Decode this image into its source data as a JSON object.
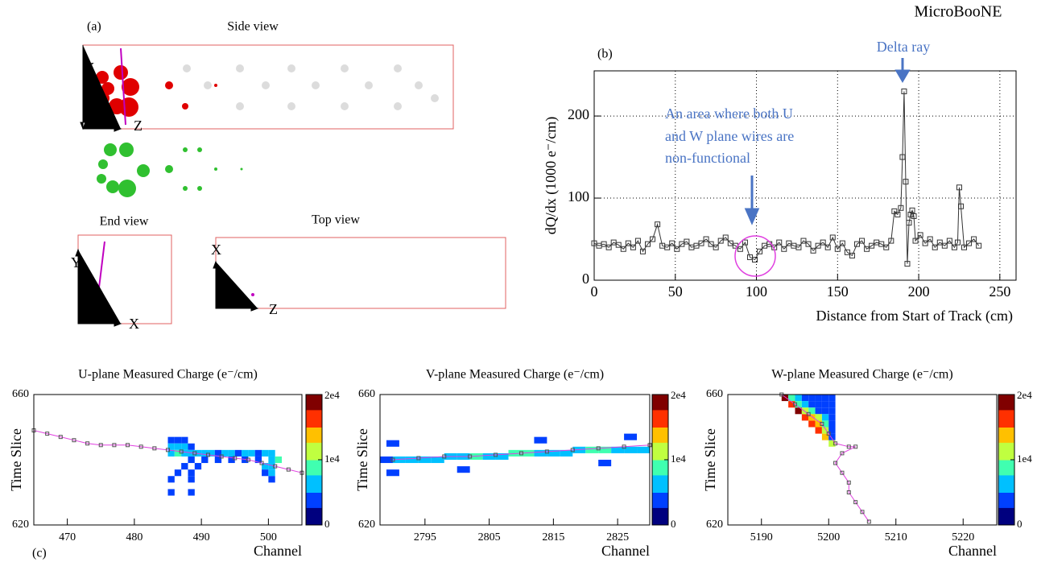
{
  "experiment": "MicroBooNE",
  "panel_labels": {
    "a": "(a)",
    "b": "(b)",
    "c": "(c)"
  },
  "panel_a": {
    "side_view": "Side view",
    "end_view": "End view",
    "top_view": "Top view",
    "side_axes": [
      "Y",
      "Z"
    ],
    "end_axes": [
      "Y",
      "X"
    ],
    "top_axes": [
      "X",
      "Z"
    ]
  },
  "chart_data": [
    {
      "type": "line",
      "x_label": "Distance from Start of Track (cm)",
      "y_label": "dQ/dx (1000 e⁻/cm)",
      "annotations": [
        "Delta ray",
        "An area where both U",
        "and W plane wires are",
        "non-functional"
      ],
      "color": "#333333",
      "x": [
        0,
        3,
        6,
        9,
        12,
        15,
        18,
        21,
        24,
        27,
        30,
        33,
        36,
        39,
        42,
        45,
        48,
        51,
        54,
        57,
        60,
        63,
        66,
        69,
        72,
        75,
        78,
        81,
        84,
        87,
        90,
        93,
        96,
        99,
        102,
        105,
        108,
        111,
        114,
        117,
        120,
        123,
        126,
        129,
        132,
        135,
        138,
        141,
        144,
        147,
        150,
        153,
        156,
        159,
        162,
        165,
        168,
        171,
        174,
        177,
        180,
        183,
        185,
        187,
        189,
        190,
        191,
        192,
        193,
        194,
        195,
        196,
        197,
        198,
        201,
        204,
        207,
        210,
        213,
        216,
        219,
        222,
        224,
        225,
        226,
        228,
        231,
        234,
        237
      ],
      "values": [
        45,
        42,
        44,
        40,
        46,
        43,
        38,
        45,
        40,
        48,
        35,
        44,
        50,
        68,
        42,
        40,
        45,
        38,
        44,
        47,
        40,
        42,
        45,
        50,
        44,
        40,
        48,
        52,
        45,
        42,
        38,
        46,
        28,
        25,
        35,
        42,
        44,
        40,
        46,
        38,
        45,
        42,
        40,
        48,
        44,
        36,
        42,
        46,
        40,
        52,
        38,
        45,
        34,
        30,
        44,
        48,
        38,
        42,
        46,
        44,
        40,
        48,
        84,
        80,
        88,
        150,
        230,
        120,
        20,
        70,
        80,
        85,
        78,
        48,
        55,
        45,
        50,
        40,
        46,
        42,
        48,
        40,
        46,
        113,
        90,
        40,
        45,
        50,
        42
      ],
      "xlim": [
        0,
        260
      ],
      "xticks": [
        0,
        50,
        100,
        150,
        200,
        250
      ],
      "ylim": [
        0,
        255
      ],
      "yticks": [
        0,
        100,
        200
      ],
      "grid": true
    },
    {
      "type": "heatmap",
      "title": "U-plane Measured Charge (e⁻/cm)",
      "x_label": "Channel",
      "y_label": "Time Slice",
      "xlim": [
        465,
        505
      ],
      "xticks": [
        470,
        480,
        490,
        500
      ],
      "ylim": [
        620,
        660
      ],
      "yticks": [
        620,
        660
      ],
      "clim": [
        0,
        20000
      ],
      "cticks": [
        0,
        {
          "value": 10000,
          "label": "1e4"
        },
        {
          "value": 20000,
          "label": "2e4"
        }
      ],
      "colormap": [
        "#00007f",
        "#0040ff",
        "#00c0ff",
        "#40ffb0",
        "#c0ff40",
        "#ffc000",
        "#ff3000",
        "#800000"
      ],
      "x": [
        485,
        486,
        487,
        485,
        486,
        487,
        488,
        485,
        486,
        487,
        488,
        489,
        490,
        491,
        492,
        493,
        494,
        495,
        496,
        497,
        498,
        499,
        500,
        488,
        490,
        492,
        494,
        496,
        498,
        500,
        501,
        487,
        489,
        499,
        500,
        486,
        488,
        499,
        500,
        485,
        488,
        500,
        485,
        488
      ],
      "y": [
        646,
        646,
        646,
        644,
        644,
        644,
        644,
        642,
        642,
        642,
        642,
        642,
        642,
        642,
        642,
        642,
        642,
        642,
        642,
        642,
        642,
        642,
        642,
        640,
        640,
        640,
        640,
        640,
        640,
        640,
        640,
        638,
        638,
        638,
        638,
        636,
        636,
        636,
        636,
        634,
        634,
        634,
        630,
        630
      ],
      "values": [
        3000,
        3500,
        2500,
        5000,
        6000,
        4500,
        3000,
        7000,
        8000,
        6000,
        5500,
        5000,
        4500,
        5000,
        4000,
        4500,
        5000,
        4000,
        4500,
        5000,
        4000,
        4500,
        5000,
        4000,
        3500,
        3000,
        3500,
        3000,
        4000,
        6000,
        9000,
        2500,
        3000,
        5000,
        6000,
        2000,
        2500,
        4000,
        5000,
        2500,
        2000,
        4000,
        2000,
        2000
      ],
      "track": {
        "color": "#e040e0",
        "x": [
          465,
          467,
          469,
          471,
          473,
          475,
          477,
          479,
          481,
          483,
          485,
          487,
          489,
          491,
          493,
          495,
          497,
          499,
          501,
          503,
          505
        ],
        "y": [
          649,
          648,
          647,
          646,
          645,
          644.5,
          644.5,
          644.5,
          644,
          643.5,
          643,
          642.5,
          642,
          641.5,
          641,
          640.5,
          640,
          639,
          638,
          637,
          636
        ]
      }
    },
    {
      "type": "heatmap",
      "title": "V-plane Measured Charge (e⁻/cm)",
      "x_label": "Channel",
      "y_label": "Time Slice",
      "xlim": [
        2788,
        2830
      ],
      "xticks": [
        2795,
        2805,
        2815,
        2825
      ],
      "ylim": [
        620,
        660
      ],
      "yticks": [
        620,
        660
      ],
      "clim": [
        0,
        20000
      ],
      "cticks": [
        0,
        {
          "value": 10000,
          "label": "1e4"
        },
        {
          "value": 20000,
          "label": "2e4"
        }
      ],
      "colormap": [
        "#00007f",
        "#0040ff",
        "#00c0ff",
        "#40ffb0",
        "#c0ff40",
        "#ffc000",
        "#ff3000",
        "#800000"
      ],
      "x": [
        2788,
        2790,
        2792,
        2794,
        2796,
        2798,
        2800,
        2802,
        2804,
        2806,
        2808,
        2810,
        2812,
        2814,
        2816,
        2818,
        2820,
        2822,
        2824,
        2826,
        2828,
        2789,
        2789,
        2800,
        2812,
        2822,
        2826
      ],
      "y": [
        640,
        640,
        640,
        640,
        640,
        641,
        641,
        641,
        641,
        641,
        642,
        642,
        642,
        642,
        642,
        643,
        643,
        643,
        643,
        643,
        643,
        645,
        636,
        637,
        646,
        639,
        647
      ],
      "values": [
        4000,
        5000,
        6000,
        5500,
        7000,
        6500,
        6000,
        8000,
        7000,
        6500,
        7500,
        8000,
        7000,
        6500,
        6000,
        7000,
        8000,
        7500,
        6000,
        7000,
        5000,
        2000,
        2500,
        2500,
        3000,
        2500,
        2000
      ],
      "track": {
        "color": "#e040e0",
        "x": [
          2790,
          2794,
          2798,
          2802,
          2806,
          2810,
          2814,
          2818,
          2822,
          2826,
          2830
        ],
        "y": [
          640,
          640.5,
          641,
          641,
          641.5,
          642,
          642.5,
          643,
          643.5,
          644,
          644.5
        ]
      }
    },
    {
      "type": "heatmap",
      "title": "W-plane Measured Charge (e⁻/cm)",
      "x_label": "Channel",
      "y_label": "Time Slice",
      "xlim": [
        5185,
        5225
      ],
      "xticks": [
        5190,
        5200,
        5210,
        5220
      ],
      "ylim": [
        620,
        660
      ],
      "yticks": [
        620,
        660
      ],
      "clim": [
        0,
        20000
      ],
      "cticks": [
        0,
        {
          "value": 10000,
          "label": "1e4"
        },
        {
          "value": 20000,
          "label": "2e4"
        }
      ],
      "colormap": [
        "#00007f",
        "#0040ff",
        "#00c0ff",
        "#40ffb0",
        "#c0ff40",
        "#ffc000",
        "#ff3000",
        "#800000"
      ],
      "x": [
        5193,
        5194,
        5195,
        5196,
        5197,
        5198,
        5199,
        5200,
        5194,
        5195,
        5196,
        5197,
        5198,
        5199,
        5200,
        5195,
        5196,
        5197,
        5198,
        5199,
        5200,
        5196,
        5197,
        5198,
        5199,
        5200,
        5197,
        5198,
        5199,
        5200,
        5198,
        5199,
        5200,
        5199,
        5200,
        5200
      ],
      "y": [
        659,
        657,
        655,
        653,
        651,
        649,
        647,
        645,
        659,
        659,
        659,
        659,
        659,
        659,
        659,
        657,
        657,
        657,
        657,
        657,
        657,
        655,
        655,
        655,
        655,
        655,
        653,
        653,
        653,
        653,
        651,
        651,
        651,
        649,
        649,
        647
      ],
      "values": [
        19000,
        18000,
        19000,
        17000,
        18000,
        16000,
        15000,
        12000,
        8000,
        5000,
        3000,
        2000,
        1500,
        1500,
        1500,
        9000,
        6000,
        4000,
        2000,
        1500,
        1500,
        12000,
        8000,
        3000,
        2000,
        1500,
        14000,
        10000,
        5000,
        2000,
        13000,
        8000,
        2500,
        10000,
        3000,
        4000
      ],
      "track": {
        "color": "#e040e0",
        "x": [
          5193,
          5195,
          5197,
          5199,
          5200,
          5201,
          5203,
          5204,
          5202,
          5201,
          5202,
          5203,
          5203,
          5204,
          5205,
          5206
        ],
        "y": [
          660,
          657,
          654,
          651,
          648,
          645,
          644,
          644,
          642,
          639,
          636,
          633,
          630,
          627,
          624,
          621
        ]
      }
    }
  ]
}
